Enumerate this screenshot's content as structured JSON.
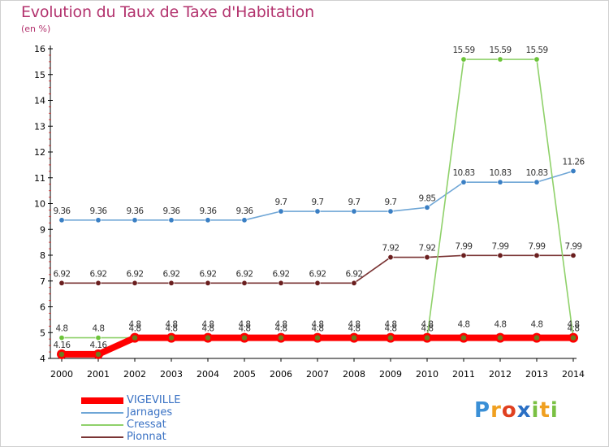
{
  "chart_data": {
    "type": "line",
    "title": "Evolution du Taux de Taxe d'Habitation",
    "subtitle": "(en %)",
    "x": [
      "2000",
      "2001",
      "2002",
      "2003",
      "2004",
      "2005",
      "2006",
      "2007",
      "2008",
      "2009",
      "2010",
      "2011",
      "2012",
      "2013",
      "2014"
    ],
    "ylim": [
      4,
      16
    ],
    "yticks": [
      4,
      5,
      6,
      7,
      8,
      9,
      10,
      11,
      12,
      13,
      14,
      15,
      16
    ],
    "grid": false,
    "legend_position": "bottom-left",
    "series": [
      {
        "name": "VIGEVILLE",
        "color": "#ff0000",
        "marker_color": "#6b7d1f",
        "values": [
          4.16,
          4.16,
          4.8,
          4.8,
          4.8,
          4.8,
          4.8,
          4.8,
          4.8,
          4.8,
          4.8,
          4.8,
          4.8,
          4.8,
          4.8
        ],
        "labels": [
          "4.16",
          "4.16",
          "4.8",
          "4.8",
          "4.8",
          "4.8",
          "4.8",
          "4.8",
          "4.8",
          "4.8",
          "4.8",
          "4.8",
          "4.8",
          "4.8",
          "4.8"
        ]
      },
      {
        "name": "Jarnages",
        "color": "#6fa6d6",
        "marker_color": "#3a7fc4",
        "values": [
          9.36,
          9.36,
          9.36,
          9.36,
          9.36,
          9.36,
          9.7,
          9.7,
          9.7,
          9.7,
          9.85,
          10.83,
          10.83,
          10.83,
          11.26
        ],
        "labels": [
          "9.36",
          "9.36",
          "9.36",
          "9.36",
          "9.36",
          "9.36",
          "9.7",
          "9.7",
          "9.7",
          "9.7",
          "9.85",
          "10.83",
          "10.83",
          "10.83",
          "11.26"
        ]
      },
      {
        "name": "Cressat",
        "color": "#8fd16a",
        "marker_color": "#6cc43a",
        "values": [
          4.8,
          4.8,
          4.8,
          4.8,
          4.8,
          4.8,
          4.8,
          4.8,
          4.8,
          4.8,
          4.8,
          15.59,
          15.59,
          15.59,
          4.8
        ],
        "labels": [
          "4.8",
          "4.8",
          "4.8",
          "4.8",
          "4.8",
          "4.8",
          "4.8",
          "4.8",
          "4.8",
          "4.8",
          "4.8",
          "15.59",
          "15.59",
          "15.59",
          "4.8"
        ]
      },
      {
        "name": "Pionnat",
        "color": "#7a3434",
        "marker_color": "#6a1e1e",
        "values": [
          6.92,
          6.92,
          6.92,
          6.92,
          6.92,
          6.92,
          6.92,
          6.92,
          6.92,
          7.92,
          7.92,
          7.99,
          7.99,
          7.99,
          7.99
        ],
        "labels": [
          "6.92",
          "6.92",
          "6.92",
          "6.92",
          "6.92",
          "6.92",
          "6.92",
          "6.92",
          "6.92",
          "7.92",
          "7.92",
          "7.99",
          "7.99",
          "7.99",
          "7.99"
        ]
      }
    ]
  },
  "legend": {
    "items": [
      {
        "label": "VIGEVILLE",
        "color": "#ff0000",
        "thickness": 8
      },
      {
        "label": "Jarnages",
        "color": "#6fa6d6",
        "thickness": 2
      },
      {
        "label": "Cressat",
        "color": "#8fd16a",
        "thickness": 2
      },
      {
        "label": "Pionnat",
        "color": "#7a3434",
        "thickness": 2
      }
    ]
  },
  "logo": {
    "letters": [
      {
        "char": "P",
        "color": "#3a8fd6"
      },
      {
        "char": "r",
        "color": "#f0a020"
      },
      {
        "char": "o",
        "color": "#e04020"
      },
      {
        "char": "x",
        "color": "#2a6fc4"
      },
      {
        "char": "i",
        "color": "#7ac043"
      },
      {
        "char": "t",
        "color": "#f0a020"
      },
      {
        "char": "i",
        "color": "#7ac043"
      }
    ]
  }
}
